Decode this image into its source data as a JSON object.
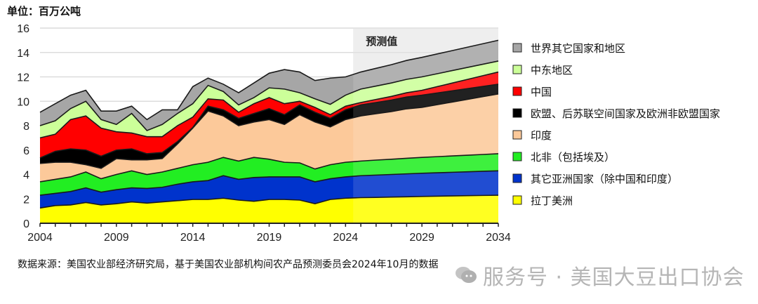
{
  "unit_label": "单位：百万公吨",
  "source": "数据来源：美国农业部经济研究局，基于美国农业部机构间农产品预测委员会2024年10月的数据",
  "watermark": "服务号 · 美国大豆出口协会",
  "chart_data": {
    "type": "area",
    "stacked": true,
    "grid": true,
    "legend_position": "right",
    "ylim": [
      0,
      16
    ],
    "yticks": [
      "0",
      "2",
      "4",
      "6",
      "8",
      "10",
      "12",
      "14",
      "16"
    ],
    "xlim": [
      2004,
      2034
    ],
    "xticks": [
      "2004",
      "2009",
      "2014",
      "2019",
      "2024",
      "2029",
      "2034"
    ],
    "forecast_label": "预测值",
    "forecast_start": 2025,
    "x": [
      2004,
      2005,
      2006,
      2007,
      2008,
      2009,
      2010,
      2011,
      2012,
      2013,
      2014,
      2015,
      2016,
      2017,
      2018,
      2019,
      2020,
      2021,
      2022,
      2023,
      2024,
      2025,
      2026,
      2027,
      2028,
      2029,
      2030,
      2031,
      2032,
      2033,
      2034
    ],
    "series": [
      {
        "name": "拉丁美洲",
        "color": "#ffff00",
        "values": [
          1.25,
          1.45,
          1.5,
          1.7,
          1.5,
          1.6,
          1.75,
          1.65,
          1.75,
          1.85,
          1.95,
          1.95,
          2.05,
          1.9,
          1.8,
          1.95,
          1.95,
          1.9,
          1.6,
          1.95,
          2.05,
          2.1,
          2.12,
          2.15,
          2.17,
          2.2,
          2.22,
          2.24,
          2.26,
          2.28,
          2.3
        ]
      },
      {
        "name": "其它亚洲国家（除中国和印度）",
        "color": "#0033cc",
        "values": [
          1.05,
          1.0,
          1.1,
          1.2,
          1.05,
          1.15,
          1.15,
          1.2,
          1.2,
          1.35,
          1.45,
          1.55,
          1.85,
          1.7,
          1.95,
          1.85,
          1.85,
          1.9,
          1.8,
          1.7,
          1.75,
          1.8,
          1.83,
          1.85,
          1.88,
          1.9,
          1.92,
          1.94,
          1.96,
          1.98,
          2.0
        ]
      },
      {
        "name": "北非（包括埃及）",
        "color": "#22ee22",
        "values": [
          1.1,
          1.15,
          1.2,
          1.3,
          1.1,
          1.25,
          1.4,
          1.15,
          1.25,
          1.3,
          1.4,
          1.5,
          1.5,
          1.5,
          1.65,
          1.45,
          1.2,
          1.15,
          1.05,
          1.15,
          1.2,
          1.2,
          1.23,
          1.25,
          1.28,
          1.3,
          1.32,
          1.34,
          1.36,
          1.38,
          1.4
        ]
      },
      {
        "name": "印度",
        "color": "#fcc99a",
        "values": [
          1.5,
          1.4,
          1.2,
          0.6,
          0.85,
          1.3,
          0.9,
          1.2,
          1.1,
          2.0,
          3.0,
          4.2,
          3.4,
          2.9,
          2.9,
          3.25,
          3.1,
          3.95,
          3.85,
          3.1,
          3.5,
          3.7,
          3.8,
          3.9,
          4.05,
          4.1,
          4.26,
          4.42,
          4.58,
          4.74,
          4.9
        ]
      },
      {
        "name": "欧盟、后苏联空间国家及欧洲非欧盟国家",
        "color": "#000000",
        "values": [
          0.45,
          0.9,
          1.1,
          1.2,
          1.0,
          0.7,
          0.9,
          0.5,
          0.5,
          0.2,
          0.05,
          0.4,
          0.5,
          0.6,
          0.7,
          0.9,
          0.8,
          0.8,
          0.8,
          0.7,
          0.8,
          0.9,
          0.92,
          0.95,
          0.97,
          1.0,
          0.96,
          0.92,
          0.88,
          0.84,
          0.8
        ]
      },
      {
        "name": "中国",
        "color": "#ff0000",
        "values": [
          1.65,
          1.4,
          2.4,
          2.8,
          2.3,
          1.5,
          1.3,
          1.4,
          1.3,
          1.3,
          0.85,
          0.6,
          0.8,
          0.5,
          0.8,
          0.9,
          0.9,
          0.3,
          0.4,
          0.3,
          0.3,
          0.2,
          0.25,
          0.3,
          0.35,
          0.4,
          0.52,
          0.64,
          0.76,
          0.88,
          1.0
        ]
      },
      {
        "name": "中东地区",
        "color": "#ccff99",
        "values": [
          1.0,
          1.1,
          0.9,
          1.2,
          0.7,
          0.6,
          1.6,
          0.5,
          1.0,
          1.0,
          1.1,
          1.1,
          0.7,
          0.6,
          0.5,
          0.8,
          1.2,
          0.7,
          0.7,
          0.85,
          0.9,
          1.1,
          1.1,
          1.1,
          1.1,
          1.1,
          1.06,
          1.02,
          0.98,
          0.94,
          0.9
        ]
      },
      {
        "name": "世界其它国家和地区",
        "color": "#a6a6a6",
        "values": [
          1.1,
          1.4,
          1.1,
          0.9,
          0.7,
          1.1,
          0.6,
          0.9,
          1.2,
          0.3,
          1.4,
          0.6,
          0.6,
          1.0,
          1.2,
          1.2,
          1.6,
          1.7,
          1.5,
          2.15,
          1.5,
          1.4,
          1.45,
          1.5,
          1.55,
          1.6,
          1.62,
          1.64,
          1.66,
          1.68,
          1.7
        ]
      }
    ]
  }
}
